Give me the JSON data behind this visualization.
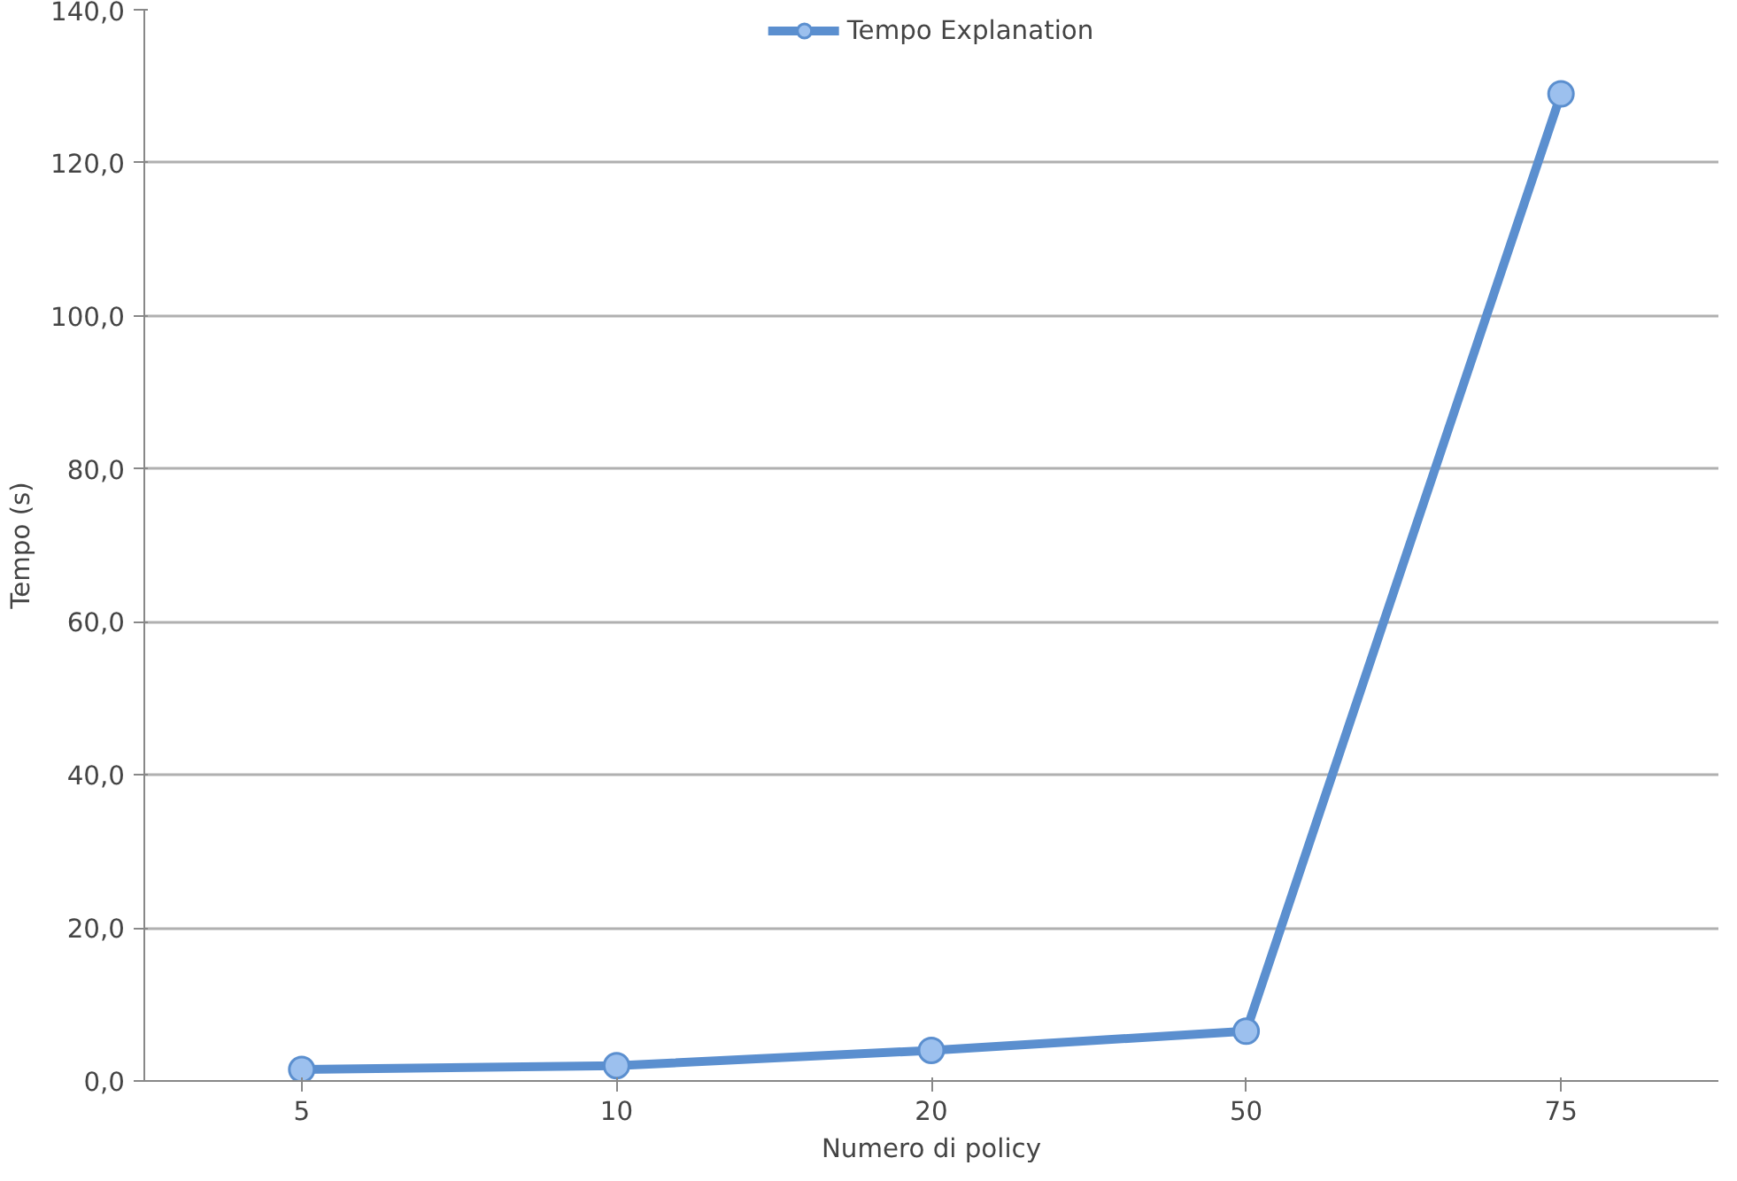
{
  "chart_data": {
    "type": "line",
    "xlabel": "Numero di policy",
    "ylabel": "Tempo (s)",
    "categories": [
      "5",
      "10",
      "20",
      "50",
      "75"
    ],
    "series": [
      {
        "name": "Tempo Explanation",
        "color": "#5b8fcf",
        "values": [
          1.5,
          2,
          4,
          6.5,
          129
        ]
      }
    ],
    "ylim": [
      0,
      140
    ],
    "yticks": [
      {
        "value": 0,
        "label": "0,0"
      },
      {
        "value": 20,
        "label": "20,0"
      },
      {
        "value": 40,
        "label": "40,0"
      },
      {
        "value": 60,
        "label": "60,0"
      },
      {
        "value": 80,
        "label": "80,0"
      },
      {
        "value": 100,
        "label": "100,0"
      },
      {
        "value": 120,
        "label": "120,0"
      },
      {
        "value": 140,
        "label": "140,0"
      }
    ],
    "grid": "y",
    "legend": "top",
    "marker": "circle",
    "line_style": "solid"
  }
}
